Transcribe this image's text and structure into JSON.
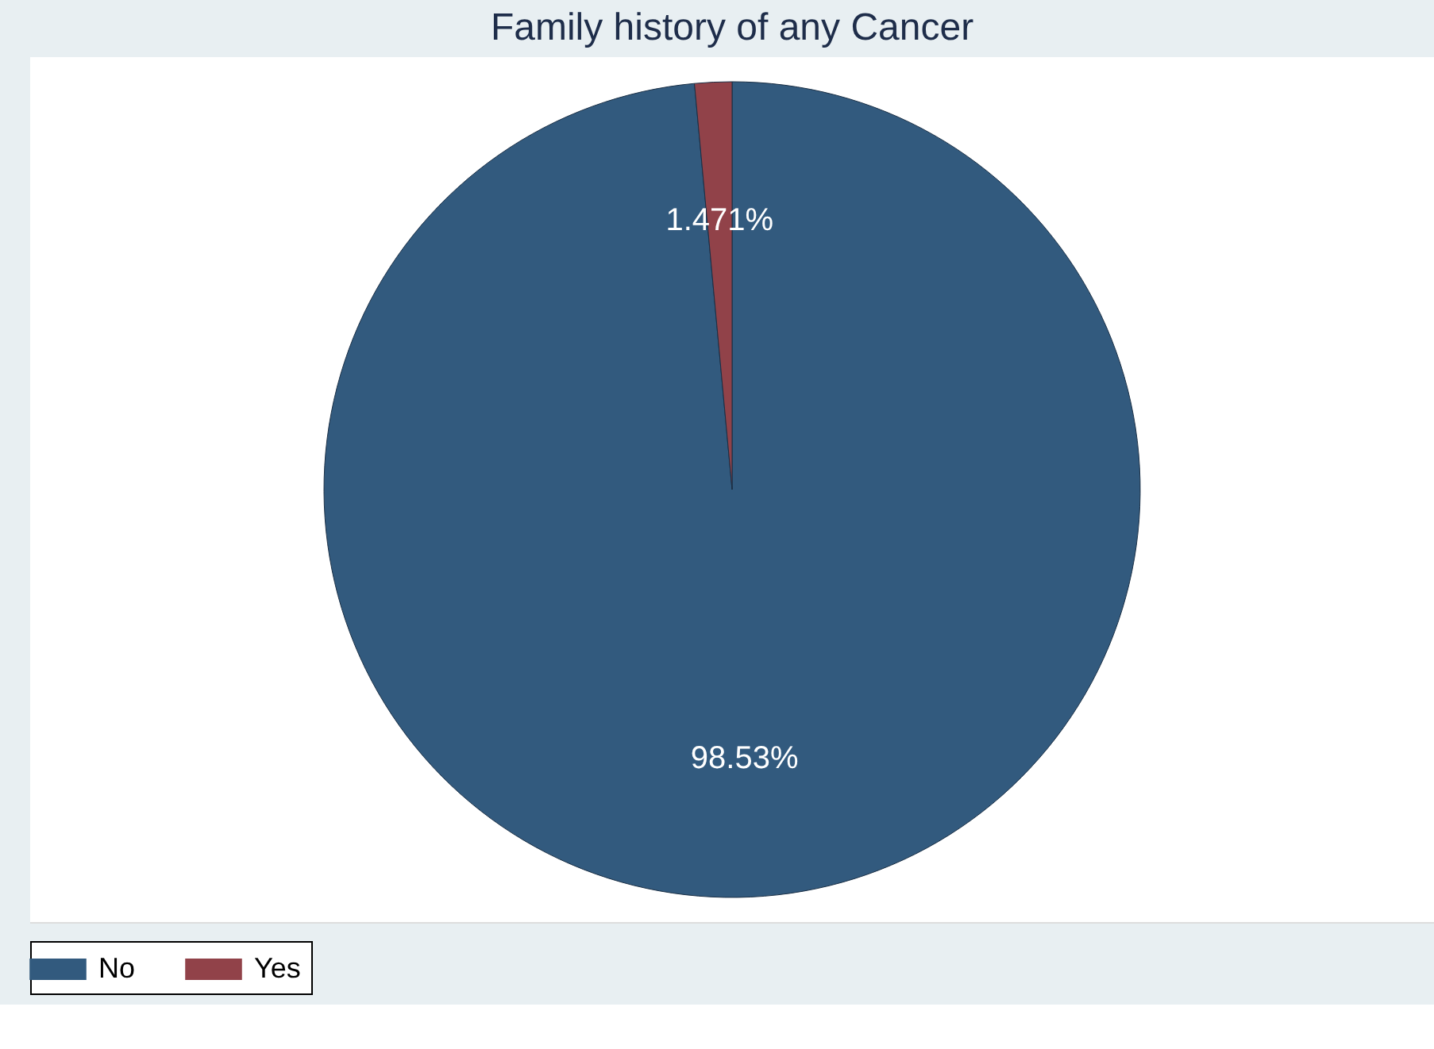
{
  "chart_data": {
    "type": "pie",
    "title": "Family history of any Cancer",
    "categories": [
      "No",
      "Yes"
    ],
    "values": [
      98.529,
      1.471
    ],
    "colors": [
      "#325a7e",
      "#914249"
    ],
    "value_labels": [
      "98.53%",
      "1.471%"
    ],
    "legend": "bottom"
  }
}
